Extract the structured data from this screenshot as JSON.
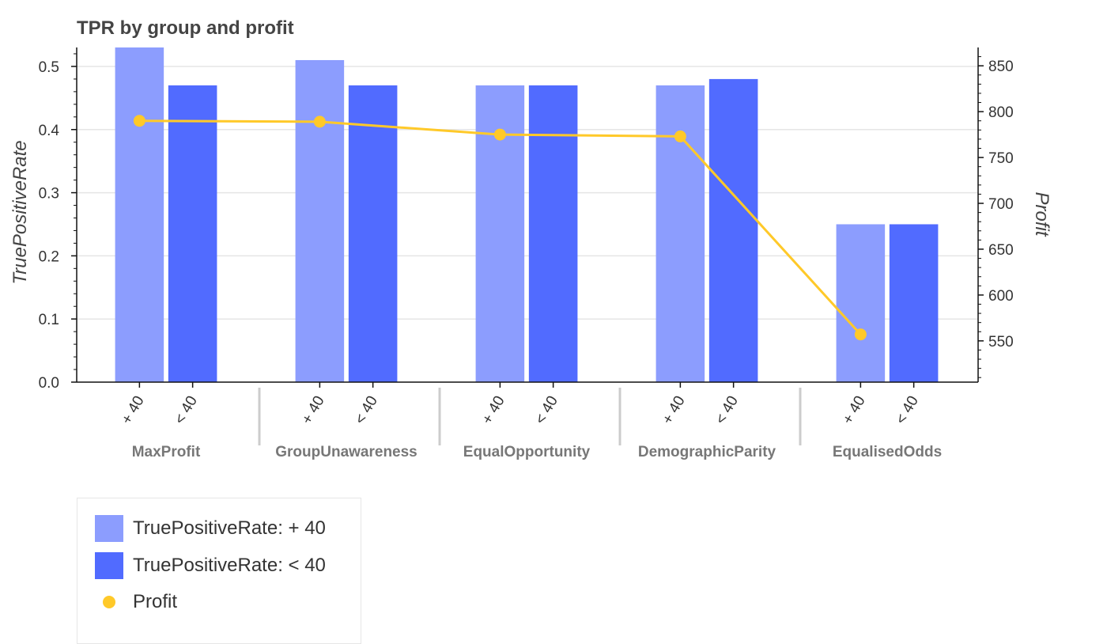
{
  "chart_data": {
    "type": "bar",
    "title": "TPR by group and profit",
    "ylabel": "TruePositiveRate",
    "y2label": "Profit",
    "groups": [
      "MaxProfit",
      "GroupUnawareness",
      "EqualOpportunity",
      "DemographicParity",
      "EqualisedOdds"
    ],
    "subcategories": [
      "+ 40",
      "< 40"
    ],
    "series": [
      {
        "name": "TruePositiveRate: + 40",
        "values": [
          0.53,
          0.51,
          0.47,
          0.47,
          0.25
        ],
        "color": "#8c9dfe"
      },
      {
        "name": "TruePositiveRate: < 40",
        "values": [
          0.47,
          0.47,
          0.47,
          0.48,
          0.25
        ],
        "color": "#516bff"
      }
    ],
    "line": {
      "name": "Profit",
      "values": [
        790,
        789,
        775,
        773,
        557
      ],
      "color": "#ffc929"
    },
    "ylim": [
      0,
      0.53
    ],
    "yticks": [
      0.0,
      0.1,
      0.2,
      0.3,
      0.4,
      0.5
    ],
    "y2lim": [
      505,
      870
    ],
    "y2ticks": [
      550,
      600,
      650,
      700,
      750,
      800,
      850
    ],
    "grid": true,
    "legend_position": "bottom-left"
  },
  "legend": {
    "items": [
      {
        "label": "TruePositiveRate: + 40",
        "color": "#8c9dfe",
        "shape": "square"
      },
      {
        "label": "TruePositiveRate: < 40",
        "color": "#516bff",
        "shape": "square"
      },
      {
        "label": "Profit",
        "color": "#ffc929",
        "shape": "circle"
      }
    ]
  }
}
